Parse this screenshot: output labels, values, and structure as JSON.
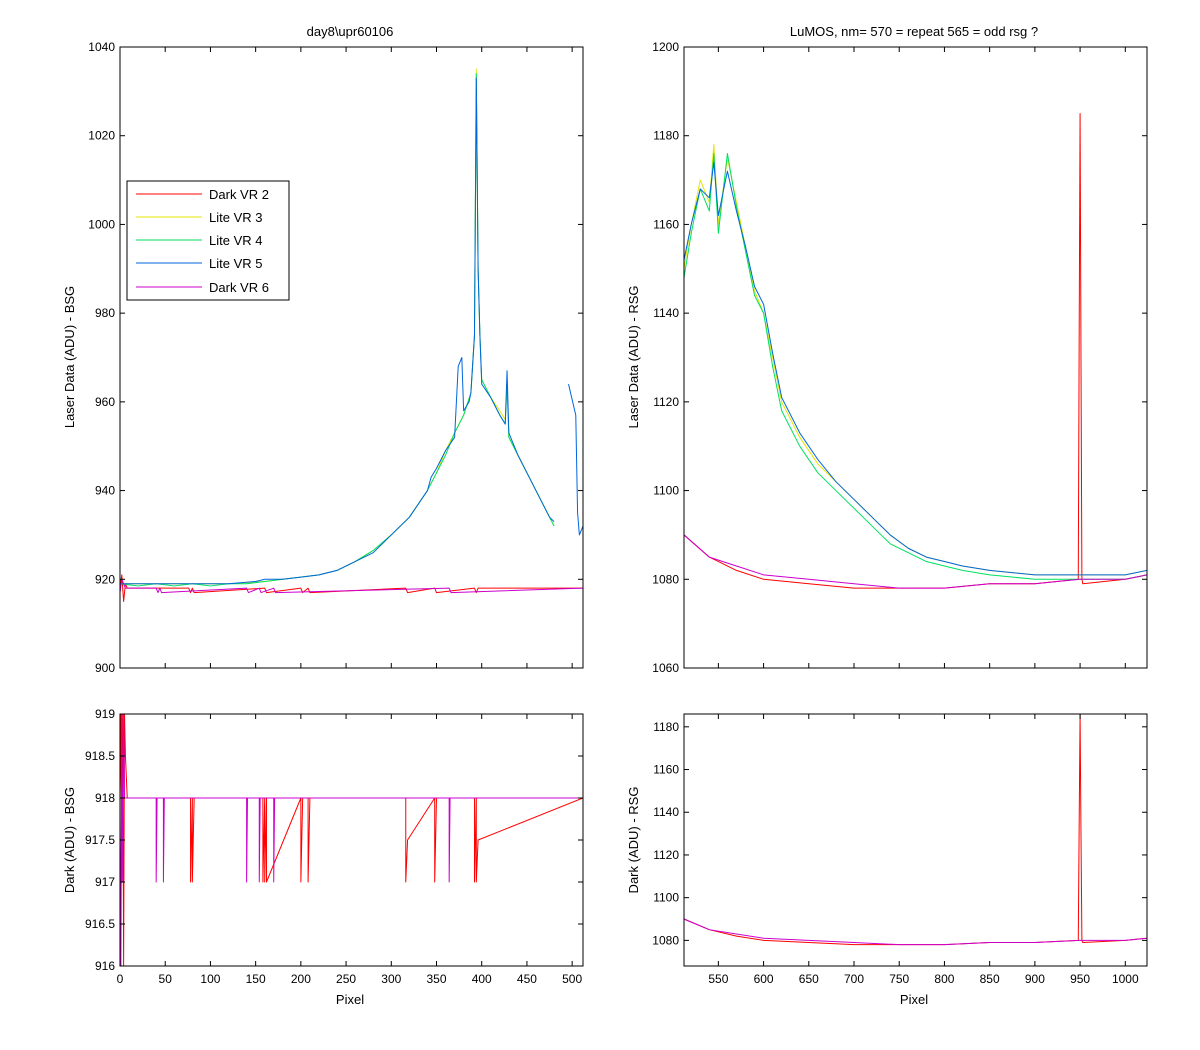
{
  "figure": {
    "background": "#ffffff"
  },
  "chart_data": [
    {
      "id": "tl",
      "type": "line",
      "title": "day8\\upr60106",
      "xlabel": "",
      "ylabel": "Laser Data (ADU) - BSG",
      "xlim": [
        0,
        512
      ],
      "ylim": [
        900,
        1040
      ],
      "xticks": [
        0,
        50,
        100,
        150,
        200,
        250,
        300,
        350,
        400,
        450,
        500
      ],
      "yticks": [
        900,
        920,
        940,
        960,
        980,
        1000,
        1020,
        1040
      ],
      "show_xtick_labels": false,
      "grid": false,
      "legend": {
        "placement": "upper-left",
        "entries": [
          "Dark VR 2",
          "Lite VR 3",
          "Lite VR 4",
          "Lite VR 5",
          "Dark VR 6"
        ]
      },
      "series": [
        {
          "name": "Dark VR 2",
          "color": "#ff0000",
          "x": [
            0,
            2,
            4,
            6,
            8,
            40,
            76,
            78,
            80,
            82,
            160,
            162,
            200,
            202,
            208,
            210,
            316,
            318,
            348,
            350,
            392,
            394,
            396,
            512
          ],
          "y": [
            918,
            921,
            915,
            919,
            918,
            918,
            918,
            917,
            918,
            917,
            918,
            917,
            918,
            917,
            918,
            917,
            918,
            917,
            918,
            917,
            918,
            917,
            918,
            918
          ]
        },
        {
          "name": "Lite VR 3",
          "color": "#e6e600",
          "x": [
            0,
            40,
            80,
            120,
            160,
            180,
            200,
            220,
            240,
            260,
            280,
            300,
            320,
            340,
            350,
            360,
            370,
            380,
            388,
            392,
            394,
            396,
            398,
            400,
            410,
            420,
            426,
            428,
            430,
            440,
            450,
            460,
            470,
            480
          ],
          "y": [
            919,
            919,
            919,
            919,
            919.5,
            920,
            920.5,
            921,
            922,
            924,
            926.5,
            930,
            934,
            940,
            944,
            949,
            953,
            957,
            962,
            975,
            1035,
            990,
            975,
            965,
            961,
            958,
            956,
            964,
            952,
            948,
            944,
            940,
            936,
            932
          ]
        },
        {
          "name": "Lite VR 4",
          "color": "#00e060",
          "x": [
            0,
            20,
            40,
            60,
            80,
            100,
            120,
            140,
            160,
            180,
            200,
            220,
            240,
            260,
            280,
            300,
            320,
            340,
            350,
            360,
            370,
            380,
            388,
            392,
            394,
            396,
            398,
            400,
            410,
            420,
            426,
            428,
            430,
            440,
            450,
            460,
            470,
            480
          ],
          "y": [
            919,
            918.5,
            919,
            918.5,
            919,
            918.5,
            919,
            919,
            919.5,
            920,
            920.5,
            921,
            922,
            924,
            926.5,
            930,
            934,
            940,
            944,
            948,
            953,
            957,
            962,
            975,
            1034,
            990,
            975,
            965,
            961,
            957,
            955,
            964,
            952,
            948,
            944,
            940,
            936,
            932
          ]
        },
        {
          "name": "Lite VR 5",
          "color": "#0066dd",
          "x": [
            0,
            40,
            80,
            120,
            150,
            160,
            180,
            200,
            220,
            240,
            260,
            280,
            300,
            320,
            340,
            344,
            350,
            360,
            370,
            374,
            378,
            380,
            386,
            388,
            392,
            394,
            396,
            398,
            400,
            410,
            420,
            426,
            428,
            430,
            440,
            450,
            460,
            470,
            475,
            480,
            null,
            496,
            504,
            506,
            508,
            512
          ],
          "y": [
            919,
            919,
            919,
            919,
            919.5,
            920,
            920,
            920.5,
            921,
            922,
            924,
            926,
            930,
            934,
            940,
            943,
            945,
            949,
            952,
            968,
            970,
            958,
            960,
            962,
            975,
            1033,
            990,
            975,
            964,
            961,
            957,
            955,
            967,
            953,
            948,
            944,
            940,
            936,
            934,
            933,
            null,
            964,
            957,
            935,
            930,
            932
          ]
        },
        {
          "name": "Dark VR 6",
          "color": "#cc00cc",
          "x": [
            0,
            2,
            4,
            6,
            8,
            12,
            40,
            42,
            44,
            46,
            140,
            142,
            154,
            156,
            170,
            172,
            364,
            366,
            512
          ],
          "y": [
            917,
            920,
            919,
            918,
            918,
            918,
            918,
            917,
            918,
            917,
            918,
            917,
            918,
            917,
            918,
            917,
            918,
            917,
            918
          ]
        }
      ]
    },
    {
      "id": "tr",
      "type": "line",
      "title": "LuMOS, nm= 570 = repeat 565 = odd rsg ?",
      "xlabel": "",
      "ylabel": "Laser Data (ADU) - RSG",
      "xlim": [
        512,
        1024
      ],
      "ylim": [
        1060,
        1200
      ],
      "xticks": [
        550,
        600,
        650,
        700,
        750,
        800,
        850,
        900,
        950,
        1000
      ],
      "yticks": [
        1060,
        1080,
        1100,
        1120,
        1140,
        1160,
        1180,
        1200
      ],
      "show_xtick_labels": false,
      "grid": false,
      "series": [
        {
          "name": "Dark VR 2",
          "color": "#ff0000",
          "x": [
            512,
            540,
            570,
            600,
            650,
            700,
            750,
            800,
            850,
            900,
            948,
            949,
            950,
            951,
            952,
            953,
            1000,
            1024
          ],
          "y": [
            1090,
            1085,
            1082,
            1080,
            1079,
            1078,
            1078,
            1078,
            1079,
            1079,
            1080,
            1135,
            1185,
            1130,
            1080,
            1079,
            1080,
            1081
          ]
        },
        {
          "name": "Lite VR 3",
          "color": "#e6e600",
          "x": [
            512,
            520,
            530,
            540,
            545,
            550,
            560,
            570,
            580,
            590,
            600,
            610,
            620,
            640,
            660,
            680,
            700,
            720,
            740,
            760,
            780,
            800,
            820,
            850,
            900,
            950,
            1000,
            1024
          ],
          "y": [
            1150,
            1160,
            1170,
            1165,
            1178,
            1160,
            1175,
            1165,
            1155,
            1145,
            1140,
            1130,
            1120,
            1112,
            1106,
            1102,
            1098,
            1094,
            1090,
            1087,
            1085,
            1084,
            1083,
            1082,
            1081,
            1081,
            1081,
            1082
          ]
        },
        {
          "name": "Lite VR 4",
          "color": "#00e060",
          "x": [
            512,
            520,
            530,
            540,
            545,
            550,
            560,
            570,
            580,
            590,
            600,
            610,
            620,
            640,
            660,
            680,
            700,
            720,
            740,
            760,
            780,
            800,
            820,
            850,
            900,
            950,
            1000,
            1024
          ],
          "y": [
            1148,
            1158,
            1168,
            1163,
            1176,
            1158,
            1176,
            1164,
            1154,
            1144,
            1140,
            1128,
            1118,
            1110,
            1104,
            1100,
            1096,
            1092,
            1088,
            1086,
            1084,
            1083,
            1082,
            1081,
            1080,
            1080,
            1080,
            1081
          ]
        },
        {
          "name": "Lite VR 5",
          "color": "#0066dd",
          "x": [
            512,
            520,
            530,
            540,
            545,
            550,
            560,
            570,
            580,
            590,
            600,
            610,
            620,
            640,
            660,
            680,
            700,
            720,
            740,
            760,
            780,
            800,
            820,
            850,
            900,
            950,
            1000,
            1024
          ],
          "y": [
            1152,
            1160,
            1168,
            1166,
            1174,
            1162,
            1172,
            1163,
            1155,
            1146,
            1142,
            1131,
            1121,
            1113,
            1107,
            1102,
            1098,
            1094,
            1090,
            1087,
            1085,
            1084,
            1083,
            1082,
            1081,
            1081,
            1081,
            1082
          ]
        },
        {
          "name": "Dark VR 6",
          "color": "#cc00cc",
          "x": [
            512,
            540,
            570,
            600,
            650,
            700,
            750,
            800,
            850,
            900,
            950,
            1000,
            1024
          ],
          "y": [
            1090,
            1085,
            1083,
            1081,
            1080,
            1079,
            1078,
            1078,
            1079,
            1079,
            1080,
            1080,
            1081
          ]
        }
      ]
    },
    {
      "id": "bl",
      "type": "line",
      "title": "",
      "xlabel": "Pixel",
      "ylabel": "Dark (ADU) - BSG",
      "xlim": [
        0,
        512
      ],
      "ylim": [
        916,
        919
      ],
      "xticks": [
        0,
        50,
        100,
        150,
        200,
        250,
        300,
        350,
        400,
        450,
        500
      ],
      "yticks": [
        916,
        916.5,
        917,
        917.5,
        918,
        918.5,
        919
      ],
      "show_xtick_labels": true,
      "grid": false,
      "series": [
        {
          "name": "Dark VR 2",
          "color": "#ff0000",
          "x": [
            0,
            1,
            2,
            3,
            4,
            5,
            6,
            8,
            78,
            78,
            79,
            80,
            80,
            82,
            158,
            158,
            160,
            160,
            162,
            162,
            200,
            200,
            202,
            208,
            208,
            210,
            316,
            316,
            318,
            348,
            348,
            350,
            392,
            392,
            394,
            394,
            396,
            512
          ],
          "y": [
            918,
            919,
            917,
            919,
            916,
            919,
            918.5,
            918,
            918,
            917,
            917.5,
            918,
            917,
            918,
            918,
            917,
            918,
            917,
            918,
            917,
            918,
            917,
            918,
            918,
            917,
            918,
            918,
            917,
            917.5,
            918,
            917,
            918,
            918,
            917,
            918,
            917,
            917.5,
            918
          ]
        },
        {
          "name": "Dark VR 6",
          "color": "#cc00cc",
          "x": [
            0,
            1,
            2,
            3,
            4,
            5,
            6,
            8,
            40,
            40,
            41,
            48,
            48,
            49,
            140,
            140,
            141,
            154,
            154,
            155,
            170,
            170,
            171,
            364,
            364,
            365,
            512
          ],
          "y": [
            918,
            916,
            919,
            917,
            919,
            918,
            918,
            918,
            918,
            917,
            918,
            918,
            917,
            918,
            918,
            917,
            918,
            918,
            917,
            918,
            918,
            917,
            918,
            918,
            917,
            918,
            918
          ]
        }
      ]
    },
    {
      "id": "br",
      "type": "line",
      "title": "",
      "xlabel": "Pixel",
      "ylabel": "Dark (ADU) - RSG",
      "xlim": [
        512,
        1024
      ],
      "ylim": [
        1068,
        1186
      ],
      "xticks": [
        550,
        600,
        650,
        700,
        750,
        800,
        850,
        900,
        950,
        1000
      ],
      "yticks": [
        1080,
        1100,
        1120,
        1140,
        1160,
        1180
      ],
      "show_xtick_labels": true,
      "grid": false,
      "series": [
        {
          "name": "Dark VR 2",
          "color": "#ff0000",
          "x": [
            512,
            540,
            570,
            600,
            650,
            700,
            750,
            800,
            850,
            900,
            948,
            949,
            950,
            951,
            952,
            953,
            1000,
            1024
          ],
          "y": [
            1090,
            1085,
            1082,
            1080,
            1079,
            1078,
            1078,
            1078,
            1079,
            1079,
            1080,
            1135,
            1186,
            1130,
            1080,
            1079,
            1080,
            1081
          ]
        },
        {
          "name": "Dark VR 6",
          "color": "#cc00cc",
          "x": [
            512,
            540,
            570,
            600,
            650,
            700,
            750,
            800,
            850,
            900,
            950,
            1000,
            1024
          ],
          "y": [
            1090,
            1085,
            1083,
            1081,
            1080,
            1079,
            1078,
            1078,
            1079,
            1079,
            1080,
            1080,
            1081
          ]
        }
      ]
    }
  ]
}
